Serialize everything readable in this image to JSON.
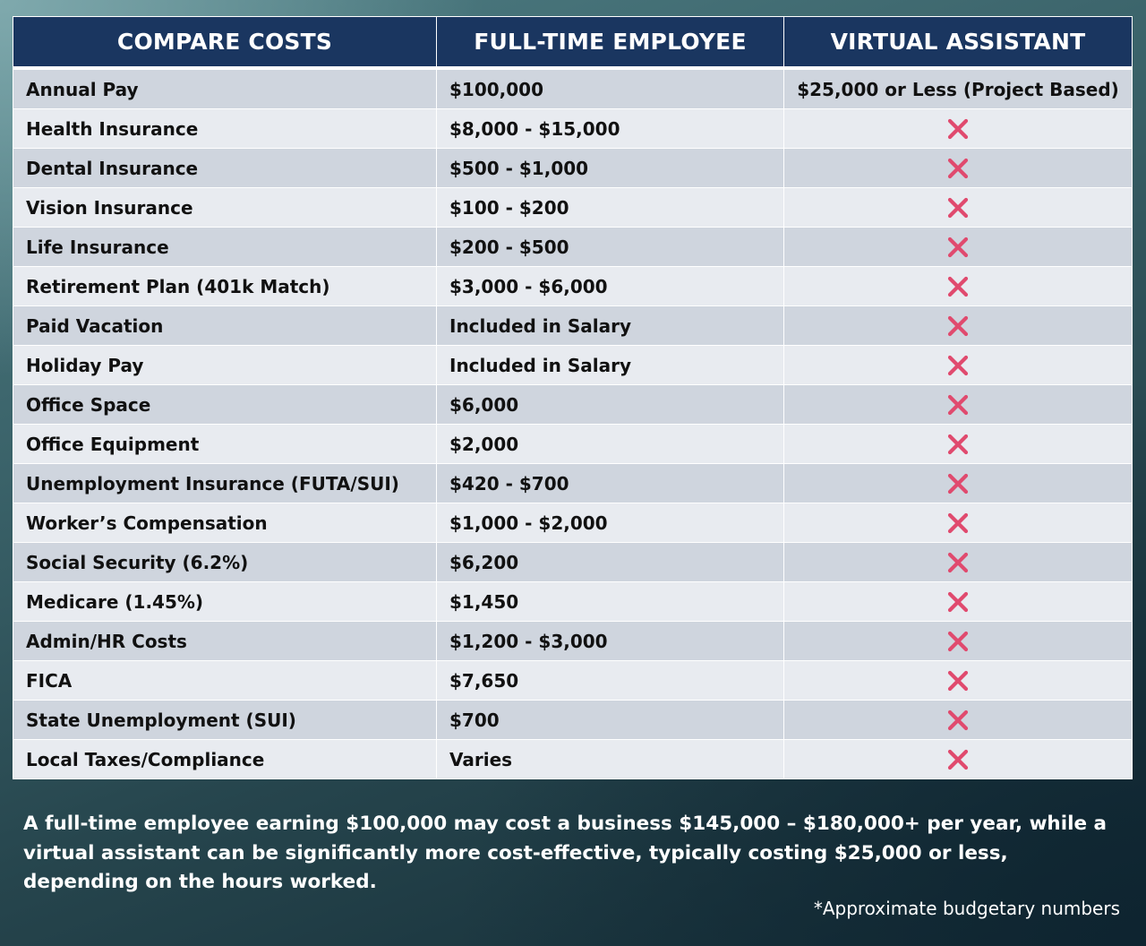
{
  "table": {
    "headers": [
      "COMPARE COSTS",
      "FULL-TIME EMPLOYEE",
      "VIRTUAL ASSISTANT"
    ],
    "rows": [
      {
        "item": "Annual Pay",
        "employee": "$100,000",
        "assistant": "$25,000 or Less (Project Based)"
      },
      {
        "item": "Health Insurance",
        "employee": "$8,000 - $15,000",
        "assistant": null
      },
      {
        "item": "Dental Insurance",
        "employee": "$500 - $1,000",
        "assistant": null
      },
      {
        "item": "Vision Insurance",
        "employee": "$100 - $200",
        "assistant": null
      },
      {
        "item": "Life Insurance",
        "employee": "$200 - $500",
        "assistant": null
      },
      {
        "item": "Retirement Plan (401k Match)",
        "employee": "$3,000 - $6,000",
        "assistant": null
      },
      {
        "item": "Paid Vacation",
        "employee": "Included in Salary",
        "assistant": null
      },
      {
        "item": "Holiday Pay",
        "employee": "Included in Salary",
        "assistant": null
      },
      {
        "item": "Office Space",
        "employee": "$6,000",
        "assistant": null
      },
      {
        "item": "Office Equipment",
        "employee": "$2,000",
        "assistant": null
      },
      {
        "item": "Unemployment Insurance (FUTA/SUI)",
        "employee": "$420 - $700",
        "assistant": null
      },
      {
        "item": "Worker’s Compensation",
        "employee": "$1,000 - $2,000",
        "assistant": null
      },
      {
        "item": "Social Security (6.2%)",
        "employee": "$6,200",
        "assistant": null
      },
      {
        "item": "Medicare (1.45%)",
        "employee": "$1,450",
        "assistant": null
      },
      {
        "item": "Admin/HR Costs",
        "employee": "$1,200 - $3,000",
        "assistant": null
      },
      {
        "item": "FICA",
        "employee": "$7,650",
        "assistant": null
      },
      {
        "item": "State Unemployment (SUI)",
        "employee": "$700",
        "assistant": null
      },
      {
        "item": "Local Taxes/Compliance",
        "employee": "Varies",
        "assistant": null
      }
    ]
  },
  "icons": {
    "not_included": "cross-mark-icon"
  },
  "colors": {
    "header_bg": "#1a3660",
    "row_dark": "#cfd5de",
    "row_light": "#e8ebf0",
    "cross": "#e04a6e"
  },
  "summary": "A full-time employee earning $100,000 may cost a business $145,000 – $180,000+ per year, while a virtual assistant can be significantly more cost-effective, typically costing  $25,000 or less, depending on the  hours worked.",
  "footnote": "*Approximate budgetary numbers"
}
